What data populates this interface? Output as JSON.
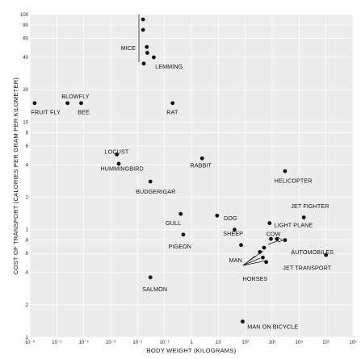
{
  "chart_data": {
    "type": "scatter",
    "xscale": "log",
    "yscale": "log",
    "xlim": [
      1e-06,
      1000000.0
    ],
    "ylim": [
      0.1,
      100
    ],
    "grid": true,
    "xlabel": "BODY WEIGHT (KILOGRAMS)",
    "ylabel": "COST OF TRANSPORT (CALORIES PER GRAM PER KILOMETER)",
    "x_ticks": [
      {
        "value": 1e-06,
        "label": "10⁻⁶"
      },
      {
        "value": 1e-05,
        "label": "10⁻⁵"
      },
      {
        "value": 0.0001,
        "label": "10⁻⁴"
      },
      {
        "value": 0.001,
        "label": "10⁻³"
      },
      {
        "value": 0.01,
        "label": "10⁻²"
      },
      {
        "value": 0.1,
        "label": "10⁻¹"
      },
      {
        "value": 1,
        "label": "1"
      },
      {
        "value": 10,
        "label": "10"
      },
      {
        "value": 100,
        "label": "10²"
      },
      {
        "value": 1000,
        "label": "10³"
      },
      {
        "value": 10000,
        "label": "10⁴"
      },
      {
        "value": 100000,
        "label": "10⁵"
      },
      {
        "value": 1000000,
        "label": "10⁶"
      }
    ],
    "y_ticks": [
      {
        "value": 100,
        "label": "100"
      },
      {
        "value": 80,
        "label": "80"
      },
      {
        "value": 60,
        "label": "60"
      },
      {
        "value": 40,
        "label": "40"
      },
      {
        "value": 20,
        "label": "20"
      },
      {
        "value": 10,
        "label": "10"
      },
      {
        "value": 8,
        "label": "8"
      },
      {
        "value": 6,
        "label": "6"
      },
      {
        "value": 4,
        "label": "4"
      },
      {
        "value": 2,
        "label": "2"
      },
      {
        "value": 1,
        "label": "1"
      },
      {
        "value": 0.8,
        "label": ".8"
      },
      {
        "value": 0.6,
        "label": ".6"
      },
      {
        "value": 0.4,
        "label": ".4"
      },
      {
        "value": 0.2,
        "label": ".2"
      },
      {
        "value": 0.1,
        "label": ".1"
      }
    ],
    "points": [
      {
        "x": 1.5e-06,
        "y": 15
      },
      {
        "x": 2.5e-05,
        "y": 15
      },
      {
        "x": 8e-05,
        "y": 15
      },
      {
        "x": 0.2,
        "y": 15
      },
      {
        "x": 0.016,
        "y": 90
      },
      {
        "x": 0.016,
        "y": 72
      },
      {
        "x": 0.022,
        "y": 50
      },
      {
        "x": 0.023,
        "y": 44
      },
      {
        "x": 0.04,
        "y": 40
      },
      {
        "x": 0.017,
        "y": 35
      },
      {
        "x": 0.0017,
        "y": 5.0
      },
      {
        "x": 0.002,
        "y": 4.1
      },
      {
        "x": 0.03,
        "y": 2.8
      },
      {
        "x": 2.5,
        "y": 4.6
      },
      {
        "x": 3000,
        "y": 3.5
      },
      {
        "x": 0.4,
        "y": 1.4
      },
      {
        "x": 0.5,
        "y": 0.9
      },
      {
        "x": 0.03,
        "y": 0.36
      },
      {
        "x": 9,
        "y": 1.35
      },
      {
        "x": 40,
        "y": 1.0
      },
      {
        "x": 70,
        "y": 0.72
      },
      {
        "x": 800,
        "y": 1.15
      },
      {
        "x": 15000,
        "y": 1.3
      },
      {
        "x": 900,
        "y": 0.82
      },
      {
        "x": 1500,
        "y": 0.82
      },
      {
        "x": 3000,
        "y": 0.8
      },
      {
        "x": 350,
        "y": 0.62
      },
      {
        "x": 500,
        "y": 0.68
      },
      {
        "x": 450,
        "y": 0.55
      },
      {
        "x": 600,
        "y": 0.5
      },
      {
        "x": 100000,
        "y": 0.58
      },
      {
        "x": 80,
        "y": 0.14
      }
    ],
    "labels": [
      {
        "text": "FRUIT FLY",
        "x": 1.1e-06,
        "y": 12.4
      },
      {
        "text": "BLOWFLY",
        "x": 1.5e-05,
        "y": 17.3
      },
      {
        "text": "BEE",
        "x": 6e-05,
        "y": 12.4
      },
      {
        "text": "RAT",
        "x": 0.12,
        "y": 12.4
      },
      {
        "text": "MICE",
        "x": 0.0024,
        "y": 49
      },
      {
        "text": "LEMMING",
        "x": 0.045,
        "y": 32.8
      },
      {
        "text": "LOCUST",
        "x": 0.0006,
        "y": 5.3
      },
      {
        "text": "HUMMINGBIRD",
        "x": 0.00042,
        "y": 3.7
      },
      {
        "text": "BUDGERIGAR",
        "x": 0.0086,
        "y": 2.25
      },
      {
        "text": "RABBIT",
        "x": 0.9,
        "y": 3.95
      },
      {
        "text": "HELICOPTER",
        "x": 1200,
        "y": 2.85
      },
      {
        "text": "JET FIGHTER",
        "x": 5000,
        "y": 1.65
      },
      {
        "text": "LIGHT PLANE",
        "x": 1200,
        "y": 1.1
      },
      {
        "text": "GULL",
        "x": 0.11,
        "y": 1.15
      },
      {
        "text": "DOG",
        "x": 16,
        "y": 1.28
      },
      {
        "text": "SHEEP",
        "x": 15,
        "y": 0.92
      },
      {
        "text": "COW",
        "x": 600,
        "y": 0.91
      },
      {
        "text": "PIGEON",
        "x": 0.14,
        "y": 0.7
      },
      {
        "text": "MAN",
        "x": 25,
        "y": 0.52
      },
      {
        "text": "AUTOMOBILES",
        "x": 5000,
        "y": 0.62
      },
      {
        "text": "JET TRANSPORT",
        "x": 2500,
        "y": 0.44
      },
      {
        "text": "HORSES",
        "x": 80,
        "y": 0.35
      },
      {
        "text": "SALMON",
        "x": 0.015,
        "y": 0.28
      },
      {
        "text": "MAN ON BICYCLE",
        "x": 120,
        "y": 0.125
      }
    ]
  }
}
